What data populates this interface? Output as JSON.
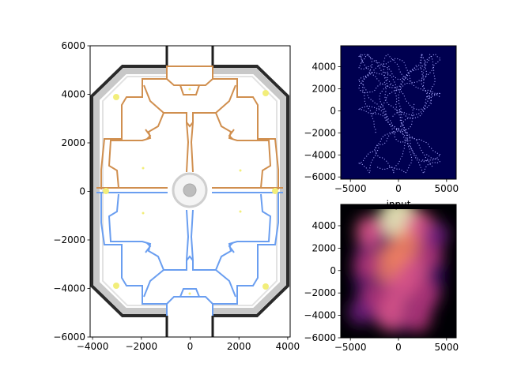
{
  "figure": {
    "background": "#ffffff"
  },
  "chart_data": [
    {
      "type": "map",
      "title": "",
      "xlim": [
        -4100,
        4100
      ],
      "ylim": [
        -6000,
        6000
      ],
      "xticks": [
        -4000,
        -2000,
        0,
        2000,
        4000
      ],
      "yticks": [
        -6000,
        -4000,
        -2000,
        0,
        2000,
        4000,
        6000
      ],
      "colors": {
        "top_side": "#d08f4f",
        "bottom_side": "#6a9ef0",
        "wall": "#2b2b2b",
        "highlight": "#f2ee7a"
      }
    },
    {
      "type": "scatter",
      "xlabel": "input",
      "xlim": [
        -6000,
        6000
      ],
      "ylim": [
        -6200,
        5900
      ],
      "xticks": [
        -5000,
        0,
        5000
      ],
      "yticks": [
        -6000,
        -4000,
        -2000,
        0,
        2000,
        4000
      ],
      "colors": {
        "background": "#000050",
        "points": "#a8a8ff"
      }
    },
    {
      "type": "heatmap",
      "xlim": [
        -6000,
        6000
      ],
      "ylim": [
        -6000,
        5900
      ],
      "xticks": [
        -5000,
        0,
        5000
      ],
      "yticks": [
        -6000,
        -4000,
        -2000,
        0,
        2000,
        4000
      ],
      "colormap": "magma",
      "blobs": [
        {
          "x": 0,
          "y": 4700,
          "w": 1.0
        },
        {
          "x": 2200,
          "y": 4000,
          "w": 0.55
        },
        {
          "x": -3000,
          "y": 3500,
          "w": 0.55
        },
        {
          "x": 600,
          "y": 2000,
          "w": 0.7
        },
        {
          "x": -1000,
          "y": 500,
          "w": 0.75
        },
        {
          "x": -3200,
          "y": 500,
          "w": 0.5
        },
        {
          "x": 3200,
          "y": 1500,
          "w": 0.45
        },
        {
          "x": 1600,
          "y": -300,
          "w": 0.55
        },
        {
          "x": 0,
          "y": -1800,
          "w": 0.65
        },
        {
          "x": -2500,
          "y": -2500,
          "w": 0.5
        },
        {
          "x": 2800,
          "y": -2200,
          "w": 0.5
        },
        {
          "x": -800,
          "y": -4000,
          "w": 0.55
        },
        {
          "x": 2000,
          "y": -4200,
          "w": 0.5
        },
        {
          "x": -4000,
          "y": -3700,
          "w": 0.35
        },
        {
          "x": 4000,
          "y": 3200,
          "w": 0.35
        }
      ]
    }
  ]
}
